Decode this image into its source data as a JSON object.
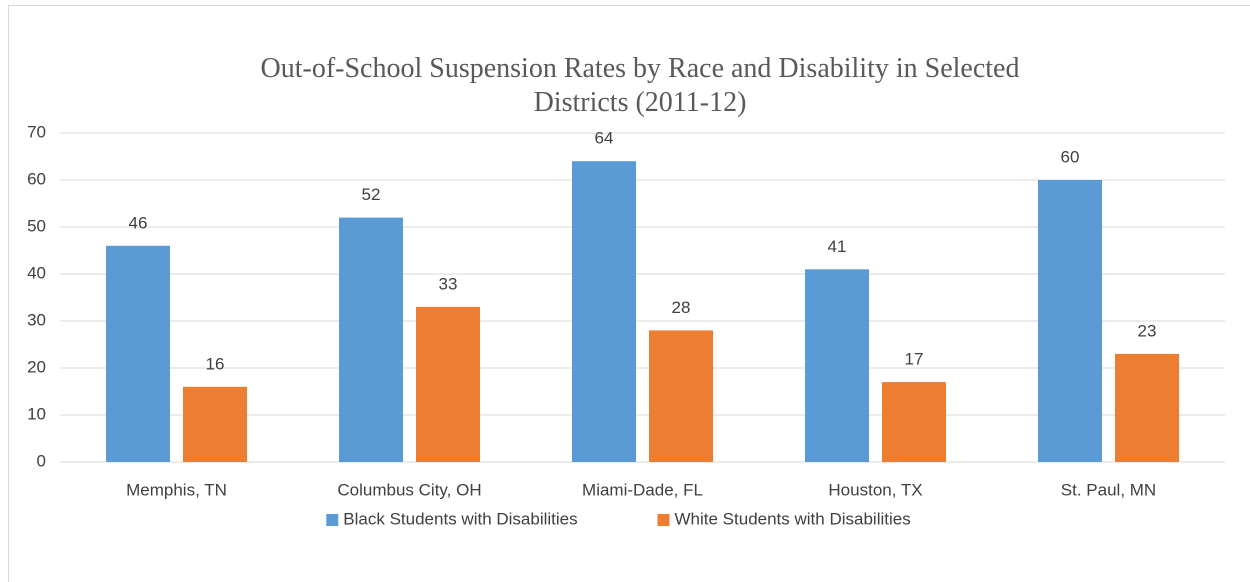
{
  "chart_data": {
    "type": "bar",
    "title": "Out-of-School Suspension Rates by Race and Disability in Selected Districts (2011-12)",
    "categories": [
      "Memphis, TN",
      "Columbus City, OH",
      "Miami-Dade, FL",
      "Houston, TX",
      "St. Paul, MN"
    ],
    "series": [
      {
        "name": "Black Students with Disabilities",
        "color": "#5b9bd5",
        "values": [
          46,
          52,
          64,
          41,
          60
        ]
      },
      {
        "name": "White Students with Disabilities",
        "color": "#ed7d31",
        "values": [
          16,
          33,
          28,
          17,
          23
        ]
      }
    ],
    "ylim": [
      0,
      70
    ],
    "yticks": [
      0,
      10,
      20,
      30,
      40,
      50,
      60,
      70
    ],
    "grid": true,
    "legend": "bottom"
  }
}
